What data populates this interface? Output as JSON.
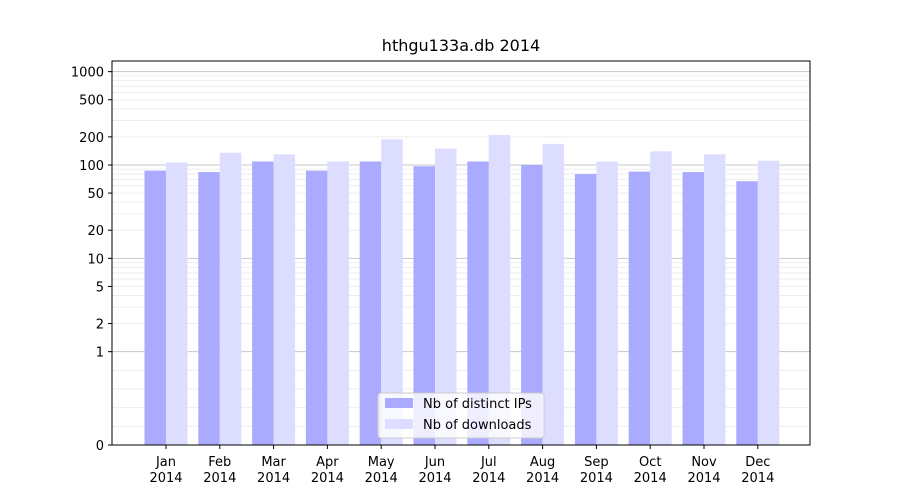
{
  "chart_data": {
    "type": "bar",
    "title": "hthgu133a.db 2014",
    "xlabel": "",
    "ylabel": "",
    "yscale": "symlog",
    "ylim": [
      0,
      1300
    ],
    "grid": "horizontal",
    "legend_position": "bottom-center",
    "categories": [
      [
        "Jan",
        "2014"
      ],
      [
        "Feb",
        "2014"
      ],
      [
        "Mar",
        "2014"
      ],
      [
        "Apr",
        "2014"
      ],
      [
        "May",
        "2014"
      ],
      [
        "Jun",
        "2014"
      ],
      [
        "Jul",
        "2014"
      ],
      [
        "Aug",
        "2014"
      ],
      [
        "Sep",
        "2014"
      ],
      [
        "Oct",
        "2014"
      ],
      [
        "Nov",
        "2014"
      ],
      [
        "Dec",
        "2014"
      ]
    ],
    "yticks": [
      {
        "value": 0,
        "label": "0"
      },
      {
        "value": 1,
        "label": "1"
      },
      {
        "value": 2,
        "label": "2"
      },
      {
        "value": 5,
        "label": "5"
      },
      {
        "value": 10,
        "label": "10"
      },
      {
        "value": 20,
        "label": "20"
      },
      {
        "value": 50,
        "label": "50"
      },
      {
        "value": 100,
        "label": "100"
      },
      {
        "value": 200,
        "label": "200"
      },
      {
        "value": 500,
        "label": "500"
      },
      {
        "value": 1000,
        "label": "1000"
      }
    ],
    "series": [
      {
        "name": "Nb of distinct IPs",
        "color": "#aaaaff",
        "values": [
          87,
          84,
          109,
          87,
          109,
          97,
          109,
          100,
          80,
          85,
          84,
          67
        ]
      },
      {
        "name": "Nb of downloads",
        "color": "#ddddff",
        "values": [
          106,
          135,
          130,
          109,
          188,
          150,
          210,
          168,
          109,
          140,
          130,
          111
        ]
      }
    ]
  }
}
